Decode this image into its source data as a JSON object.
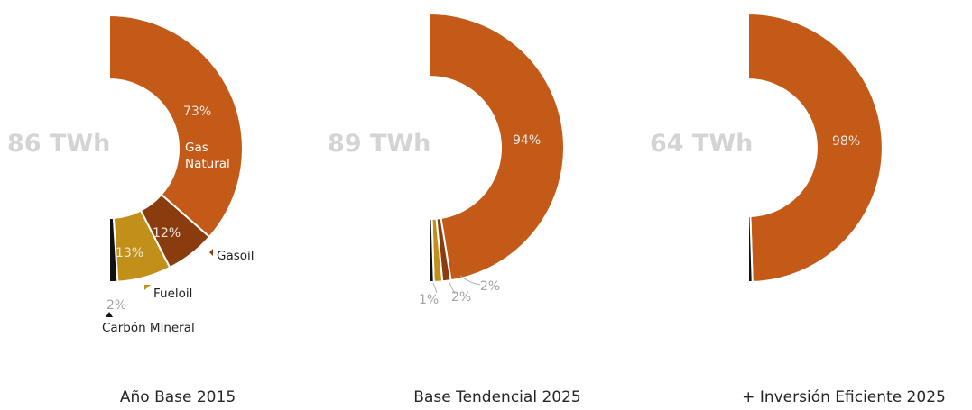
{
  "chart_data": [
    {
      "type": "pie",
      "style": "half-donut",
      "caption": "Año Base 2015",
      "total_label": "86 TWh",
      "series": [
        {
          "name": "Gas Natural",
          "value": 73,
          "label": "73%",
          "color": "#c45a17"
        },
        {
          "name": "Gasoil",
          "value": 12,
          "label": "12%",
          "color": "#8b3c0f"
        },
        {
          "name": "Fueloil",
          "value": 13,
          "label": "13%",
          "color": "#c29018"
        },
        {
          "name": "Carbón Mineral",
          "value": 2,
          "label": "2%",
          "color": "#111111"
        }
      ],
      "legend_labels": [
        "Gas",
        "Natural",
        "Gasoil",
        "Fueloil",
        "Carbón Mineral"
      ]
    },
    {
      "type": "pie",
      "style": "half-donut",
      "caption": "Base Tendencial 2025",
      "total_label": "89 TWh",
      "series": [
        {
          "name": "Gas Natural",
          "value": 94,
          "label": "94%",
          "color": "#c45a17"
        },
        {
          "name": "Gasoil",
          "value": 2,
          "label": "2%",
          "color": "#8b3c0f"
        },
        {
          "name": "Fueloil",
          "value": 2,
          "label": "2%",
          "color": "#c29018"
        },
        {
          "name": "Carbón Mineral",
          "value": 1,
          "label": "1%",
          "color": "#111111"
        }
      ]
    },
    {
      "type": "pie",
      "style": "half-donut",
      "caption": "+ Inversión Eficiente 2025",
      "total_label": "64 TWh",
      "series": [
        {
          "name": "Gas Natural",
          "value": 98,
          "label": "98%",
          "color": "#c45a17"
        },
        {
          "name": "Carbón Mineral",
          "value": 1,
          "label": "",
          "color": "#111111"
        }
      ]
    }
  ]
}
